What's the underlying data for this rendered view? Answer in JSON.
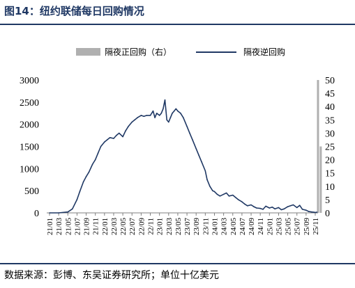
{
  "figure": {
    "title": "图14：纽约联储每日回购情况",
    "source": "数据来源：彭博、东吴证券研究所；单位十亿美元",
    "colors": {
      "rule": "#1f3864",
      "title": "#1f3864",
      "line": "#1f3864",
      "bar": "#b0b0b0",
      "axis": "#7f7f7f"
    }
  },
  "chart_data": {
    "type": "line",
    "legend": {
      "position": "top-right"
    },
    "grid": false,
    "x_tick_labels": [
      "21/01",
      "21/03",
      "21/05",
      "21/07",
      "21/09",
      "21/11",
      "22/01",
      "22/03",
      "22/05",
      "22/07",
      "22/09",
      "22/11",
      "23/01",
      "23/03",
      "23/05",
      "23/07",
      "23/09",
      "23/11",
      "24/01",
      "24/03",
      "24/05",
      "24/07",
      "24/09",
      "24/11",
      "25/01",
      "25/03",
      "25/05",
      "25/07",
      "25/09",
      "25/11"
    ],
    "y_left": {
      "ticks": [
        0,
        500,
        1000,
        1500,
        2000,
        2500,
        3000
      ],
      "range": [
        0,
        3000
      ]
    },
    "y_right": {
      "ticks": [
        0,
        5,
        10,
        15,
        20,
        25,
        30,
        35,
        40,
        45,
        50
      ],
      "range": [
        0,
        50
      ]
    },
    "series": [
      {
        "name": "隔夜逆回购",
        "axis": "left",
        "x": [
          0,
          1,
          2,
          2.5,
          3,
          3.3,
          3.7,
          4,
          4.3,
          4.7,
          5,
          5.3,
          5.6,
          6,
          6.3,
          6.6,
          7,
          7.3,
          7.6,
          8,
          8.3,
          8.6,
          9,
          9.3,
          9.6,
          10,
          10.3,
          10.6,
          11,
          11.3,
          11.5,
          11.7,
          12,
          12.2,
          12.4,
          12.6,
          12.8,
          13,
          13.2,
          13.4,
          13.6,
          13.8,
          14,
          14.3,
          14.6,
          15,
          15.3,
          15.6,
          16,
          16.3,
          16.6,
          17,
          17.2,
          17.5,
          17.8,
          18,
          18.3,
          18.6,
          19,
          19.3,
          19.6,
          20,
          20.3,
          20.6,
          21,
          21.3,
          21.6,
          22,
          22.3,
          22.6,
          23,
          23.3,
          23.6,
          24,
          24.3,
          24.6,
          25,
          25.3,
          25.6,
          26,
          26.3,
          26.6,
          27,
          27.3,
          27.6,
          28,
          28.3,
          28.6,
          29,
          29.2
        ],
        "values": [
          0,
          0,
          20,
          90,
          300,
          480,
          700,
          820,
          920,
          1100,
          1200,
          1350,
          1500,
          1600,
          1650,
          1700,
          1680,
          1750,
          1800,
          1720,
          1850,
          1950,
          2050,
          2100,
          2150,
          2200,
          2180,
          2200,
          2200,
          2300,
          2150,
          2250,
          2200,
          2250,
          2350,
          2550,
          2100,
          2050,
          2150,
          2250,
          2300,
          2350,
          2300,
          2250,
          2150,
          1950,
          1800,
          1650,
          1450,
          1300,
          1150,
          950,
          750,
          600,
          500,
          480,
          420,
          380,
          420,
          450,
          380,
          400,
          350,
          300,
          250,
          200,
          160,
          180,
          140,
          110,
          100,
          80,
          150,
          110,
          130,
          90,
          120,
          70,
          90,
          140,
          160,
          180,
          120,
          170,
          80,
          60,
          30,
          20,
          10,
          15
        ]
      },
      {
        "name": "隔夜正回购（右）",
        "axis": "right",
        "type": "bar",
        "x": [
          28.8,
          29.3,
          29.6
        ],
        "values": [
          0.5,
          50,
          25
        ]
      }
    ]
  }
}
